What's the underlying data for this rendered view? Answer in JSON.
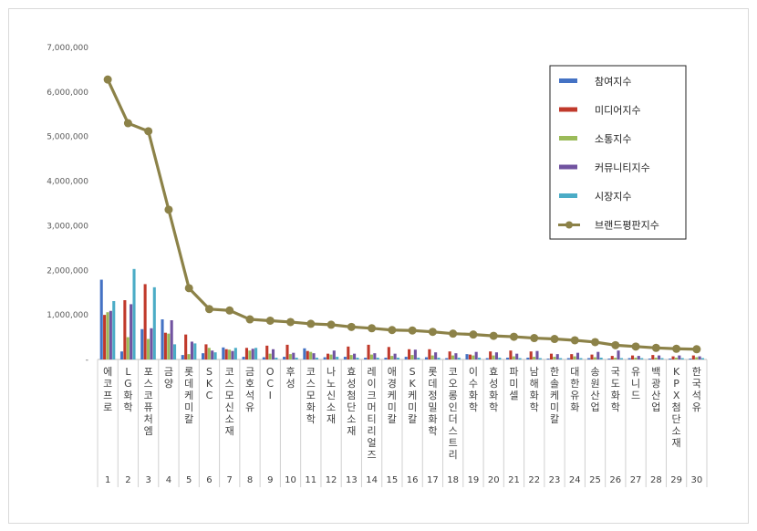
{
  "chart_data": {
    "type": "bar",
    "ylim": [
      0,
      7000000
    ],
    "yticks": [
      "-",
      "1,000,000",
      "2,000,000",
      "3,000,000",
      "4,000,000",
      "5,000,000",
      "6,000,000",
      "7,000,000"
    ],
    "grid": false,
    "legend_position": "top-right",
    "numbers": [
      "1",
      "2",
      "3",
      "4",
      "5",
      "6",
      "7",
      "8",
      "9",
      "10",
      "11",
      "12",
      "13",
      "14",
      "15",
      "16",
      "17",
      "18",
      "19",
      "20",
      "21",
      "22",
      "23",
      "24",
      "25",
      "26",
      "27",
      "28",
      "29",
      "30"
    ],
    "categories": [
      "에코프로",
      "LG화학",
      "포스코퓨처엠",
      "금양",
      "롯데케미칼",
      "SKC",
      "코스모신소재",
      "금호석유",
      "OCI",
      "후성",
      "코스모화학",
      "나노신소재",
      "효성첨단소재",
      "레이크머티리얼즈",
      "애경케미칼",
      "SK케미칼",
      "롯데정밀화학",
      "코오롱인더스트리",
      "이수화학",
      "효성화학",
      "파미셀",
      "남해화학",
      "한솔케미칼",
      "대한유화",
      "송원산업",
      "국도화학",
      "유니드",
      "백광산업",
      "KPX첨단소재",
      "한국석유"
    ],
    "series": [
      {
        "name": "참여지수",
        "color": "#4472c4",
        "kind": "bar",
        "values": [
          1790000,
          180000,
          680000,
          900000,
          100000,
          140000,
          270000,
          60000,
          50000,
          60000,
          250000,
          50000,
          60000,
          40000,
          40000,
          60000,
          50000,
          30000,
          120000,
          30000,
          40000,
          40000,
          20000,
          30000,
          30000,
          20000,
          30000,
          20000,
          20000,
          20000
        ]
      },
      {
        "name": "미디어지수",
        "color": "#c0392b",
        "kind": "bar",
        "values": [
          1000000,
          1330000,
          1690000,
          600000,
          560000,
          340000,
          230000,
          260000,
          310000,
          330000,
          190000,
          130000,
          290000,
          330000,
          280000,
          230000,
          230000,
          180000,
          110000,
          180000,
          200000,
          180000,
          130000,
          120000,
          110000,
          80000,
          90000,
          100000,
          70000,
          90000
        ]
      },
      {
        "name": "소통지수",
        "color": "#9bbb59",
        "kind": "bar",
        "values": [
          1060000,
          500000,
          460000,
          580000,
          120000,
          260000,
          220000,
          200000,
          130000,
          120000,
          170000,
          110000,
          100000,
          110000,
          80000,
          100000,
          90000,
          90000,
          90000,
          90000,
          70000,
          60000,
          60000,
          70000,
          50000,
          40000,
          40000,
          40000,
          40000,
          50000
        ]
      },
      {
        "name": "커뮤니티지수",
        "color": "#7153a0",
        "kind": "bar",
        "values": [
          1090000,
          1240000,
          700000,
          880000,
          400000,
          200000,
          190000,
          240000,
          230000,
          150000,
          140000,
          200000,
          130000,
          140000,
          130000,
          220000,
          160000,
          140000,
          170000,
          160000,
          130000,
          190000,
          120000,
          150000,
          170000,
          200000,
          80000,
          90000,
          90000,
          70000
        ]
      },
      {
        "name": "시장지수",
        "color": "#4bacc6",
        "kind": "bar",
        "values": [
          1310000,
          2030000,
          1620000,
          340000,
          360000,
          160000,
          260000,
          260000,
          40000,
          40000,
          40000,
          60000,
          40000,
          40000,
          40000,
          40000,
          40000,
          40000,
          40000,
          40000,
          30000,
          30000,
          30000,
          30000,
          40000,
          30000,
          30000,
          30000,
          30000,
          30000
        ]
      },
      {
        "name": "브랜드평판지수",
        "color": "#8c8248",
        "kind": "line",
        "values": [
          6280000,
          5300000,
          5120000,
          3360000,
          1600000,
          1130000,
          1100000,
          900000,
          870000,
          840000,
          800000,
          780000,
          730000,
          700000,
          660000,
          650000,
          620000,
          580000,
          560000,
          530000,
          510000,
          480000,
          460000,
          430000,
          390000,
          320000,
          290000,
          260000,
          240000,
          230000
        ]
      }
    ]
  }
}
